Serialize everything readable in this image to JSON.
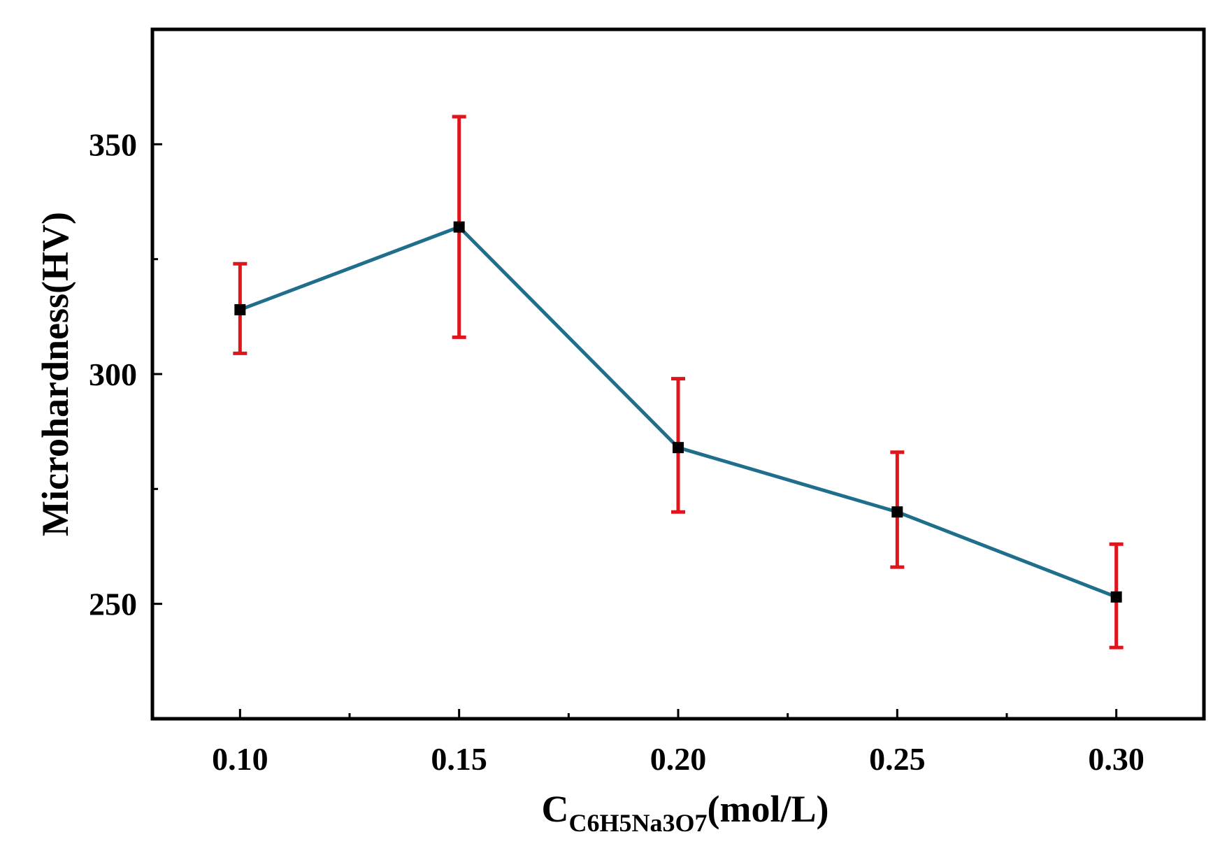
{
  "chart_data": {
    "type": "line",
    "title": "",
    "x": [
      0.1,
      0.15,
      0.2,
      0.25,
      0.3
    ],
    "x_tick_labels": [
      "0.10",
      "0.15",
      "0.20",
      "0.25",
      "0.30"
    ],
    "xlim": [
      0.08,
      0.32
    ],
    "xlabel_main": "C",
    "xlabel_subscript": "C6H5Na3O7",
    "xlabel_suffix": "(mol/L)",
    "ylabel": "Microhardness(HV)",
    "ylim": [
      225,
      375
    ],
    "y_ticks": [
      250,
      300,
      350
    ],
    "y_tick_labels": [
      "250",
      "300",
      "350"
    ],
    "grid": false,
    "series": [
      {
        "name": "Microhardness",
        "values": [
          314,
          332,
          284,
          270,
          251.5
        ],
        "error_upper": [
          324,
          356,
          299,
          283,
          263
        ],
        "error_lower": [
          304.5,
          308,
          270,
          258,
          240.5
        ],
        "line_color": "#1f6e8c",
        "marker_color": "#000000",
        "error_color": "#e0141b"
      }
    ]
  }
}
